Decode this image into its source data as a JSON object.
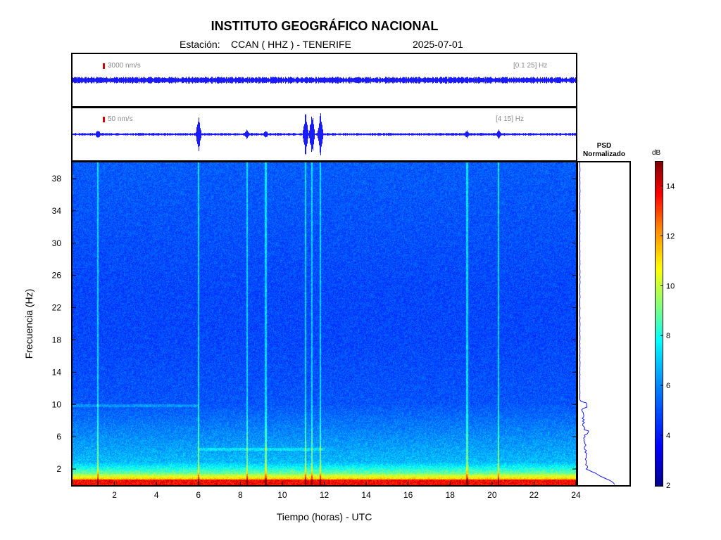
{
  "header": {
    "title": "INSTITUTO GEOGRÁFICO NACIONAL",
    "station_prefix": "Estación:",
    "station": "CCAN ( HHZ ) - TENERIFE",
    "date": "2025-07-01"
  },
  "traces": [
    {
      "scale": "3000 nm/s",
      "band": "[0.1 25] Hz"
    },
    {
      "scale": "50 nm/s",
      "band": "[4 15] Hz"
    }
  ],
  "psd": {
    "title_line1": "PSD",
    "title_line2": "Normalizado"
  },
  "colorbar": {
    "unit": "dB",
    "ticks": [
      "2",
      "4",
      "6",
      "8",
      "10",
      "12",
      "14"
    ],
    "range": [
      2,
      15
    ]
  },
  "chart_data": {
    "type": "heatmap",
    "xlabel": "Tiempo (horas) - UTC",
    "ylabel": "Frecuencia  (Hz)",
    "xlim": [
      0,
      24
    ],
    "ylim": [
      0,
      40
    ],
    "x_ticks": [
      "2",
      "4",
      "6",
      "8",
      "10",
      "12",
      "14",
      "16",
      "18",
      "20",
      "22",
      "24"
    ],
    "y_ticks": [
      "2",
      "6",
      "10",
      "14",
      "18",
      "22",
      "26",
      "30",
      "34",
      "38"
    ],
    "colors": {
      "trace": "#1a1aff",
      "axis": "#000000"
    },
    "events_hours": [
      1.2,
      6.0,
      8.3,
      9.2,
      11.1,
      11.4,
      11.8,
      18.8,
      20.3
    ]
  }
}
